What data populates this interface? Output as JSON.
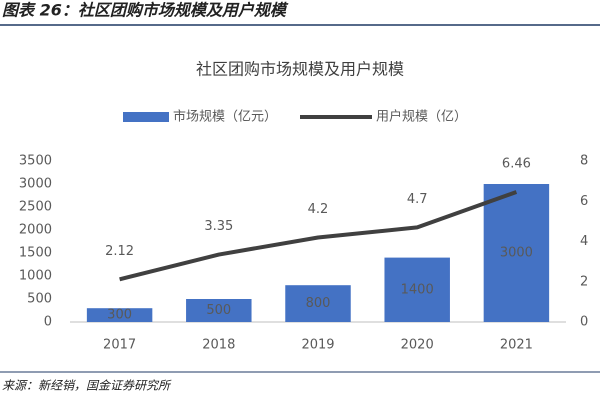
{
  "header": {
    "title": "图表 26：社区团购市场规模及用户规模"
  },
  "chart_data": {
    "type": "combo",
    "title": "社区团购市场规模及用户规模",
    "categories": [
      "2017",
      "2018",
      "2019",
      "2020",
      "2021"
    ],
    "series": [
      {
        "name": "市场规模（亿元）",
        "type": "bar",
        "color": "#4472c4",
        "values": [
          300,
          500,
          800,
          1400,
          3000
        ]
      },
      {
        "name": "用户规模（亿）",
        "type": "line",
        "color": "#404040",
        "axis": "y2",
        "values": [
          2.12,
          3.35,
          4.2,
          4.7,
          6.46
        ]
      }
    ],
    "ylim": [
      0,
      3500
    ],
    "yticks": [
      0,
      500,
      1000,
      1500,
      2000,
      2500,
      3000,
      3500
    ],
    "y2lim": [
      0,
      8
    ],
    "y2ticks": [
      0,
      2,
      4,
      6,
      8
    ],
    "legend": "top",
    "grid": false
  },
  "source": "来源：新经销，国金证券研究所"
}
